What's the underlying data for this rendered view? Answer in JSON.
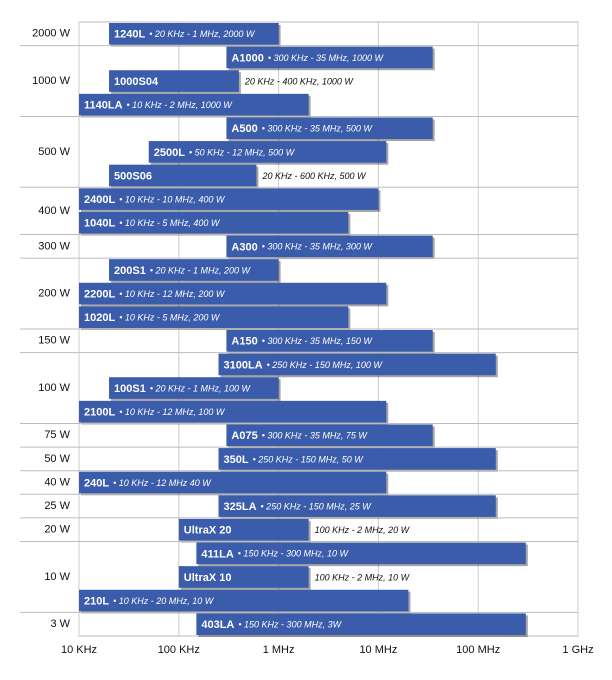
{
  "chart_data": {
    "type": "range-bar",
    "x_scale": "log",
    "xlim": [
      10000,
      1000000000
    ],
    "xticks": [
      {
        "value": 10000,
        "label": "10 KHz"
      },
      {
        "value": 100000,
        "label": "100 KHz"
      },
      {
        "value": 1000000,
        "label": "1 MHz"
      },
      {
        "value": 10000000,
        "label": "10 MHz"
      },
      {
        "value": 100000000,
        "label": "100 MHz"
      },
      {
        "value": 1000000000,
        "label": "1 GHz"
      }
    ],
    "grid": true,
    "color": "#3a5cab",
    "groups": [
      {
        "label": "2000 W",
        "bars": [
          {
            "name": "1240L",
            "desc": "• 20 KHz - 1 MHz, 2000 W",
            "start": 20000,
            "end": 1000000
          }
        ]
      },
      {
        "label": "1000 W",
        "bars": [
          {
            "name": "A1000",
            "desc": "• 300 KHz - 35 MHz, 1000 W",
            "start": 300000,
            "end": 35000000
          },
          {
            "name": "1000S04",
            "desc": "20 KHz - 400 KHz, 1000 W",
            "start": 20000,
            "end": 400000
          },
          {
            "name": "1140LA",
            "desc": "• 10 KHz - 2 MHz, 1000 W",
            "start": 10000,
            "end": 2000000
          }
        ]
      },
      {
        "label": "500 W",
        "bars": [
          {
            "name": "A500",
            "desc": "• 300 KHz - 35 MHz, 500 W",
            "start": 300000,
            "end": 35000000
          },
          {
            "name": "2500L",
            "desc": "• 50 KHz - 12 MHz, 500 W",
            "start": 50000,
            "end": 12000000
          },
          {
            "name": "500S06",
            "desc": "20 KHz - 600 KHz, 500 W",
            "start": 20000,
            "end": 600000
          }
        ]
      },
      {
        "label": "400 W",
        "bars": [
          {
            "name": "2400L",
            "desc": "• 10 KHz - 10 MHz, 400 W",
            "start": 10000,
            "end": 10000000
          },
          {
            "name": "1040L",
            "desc": "• 10 KHz - 5 MHz, 400 W",
            "start": 10000,
            "end": 5000000
          }
        ]
      },
      {
        "label": "300 W",
        "bars": [
          {
            "name": "A300",
            "desc": "• 300 KHz - 35 MHz, 300 W",
            "start": 300000,
            "end": 35000000
          }
        ]
      },
      {
        "label": "200 W",
        "bars": [
          {
            "name": "200S1",
            "desc": "• 20 KHz - 1 MHz, 200 W",
            "start": 20000,
            "end": 1000000
          },
          {
            "name": "2200L",
            "desc": "• 10 KHz - 12 MHz, 200 W",
            "start": 10000,
            "end": 12000000
          },
          {
            "name": "1020L",
            "desc": "• 10 KHz - 5 MHz, 200 W",
            "start": 10000,
            "end": 5000000
          }
        ]
      },
      {
        "label": "150 W",
        "bars": [
          {
            "name": "A150",
            "desc": "• 300 KHz - 35 MHz, 150 W",
            "start": 300000,
            "end": 35000000
          }
        ]
      },
      {
        "label": "100 W",
        "bars": [
          {
            "name": "3100LA",
            "desc": "• 250 KHz - 150 MHz, 100 W",
            "start": 250000,
            "end": 150000000
          },
          {
            "name": "100S1",
            "desc": "• 20 KHz - 1 MHz, 100 W",
            "start": 20000,
            "end": 1000000
          },
          {
            "name": "2100L",
            "desc": "• 10 KHz - 12 MHz, 100 W",
            "start": 10000,
            "end": 12000000
          }
        ]
      },
      {
        "label": "75 W",
        "bars": [
          {
            "name": "A075",
            "desc": "• 300 KHz - 35 MHz, 75 W",
            "start": 300000,
            "end": 35000000
          }
        ]
      },
      {
        "label": "50 W",
        "bars": [
          {
            "name": "350L",
            "desc": "• 250 KHz - 150 MHz, 50 W",
            "start": 250000,
            "end": 150000000
          }
        ]
      },
      {
        "label": "40 W",
        "bars": [
          {
            "name": "240L",
            "desc": "• 10 KHz - 12 MHz 40 W",
            "start": 10000,
            "end": 12000000
          }
        ]
      },
      {
        "label": "25 W",
        "bars": [
          {
            "name": "325LA",
            "desc": "• 250 KHz - 150 MHz, 25 W",
            "start": 250000,
            "end": 150000000
          }
        ]
      },
      {
        "label": "20 W",
        "bars": [
          {
            "name": "UltraX 20",
            "desc": "100 KHz - 2 MHz, 20 W",
            "start": 100000,
            "end": 2000000
          }
        ]
      },
      {
        "label": "10 W",
        "bars": [
          {
            "name": "411LA",
            "desc": "• 150 KHz - 300 MHz, 10 W",
            "start": 150000,
            "end": 300000000
          },
          {
            "name": "UltraX 10",
            "desc": "100 KHz - 2 MHz, 10 W",
            "start": 100000,
            "end": 2000000
          },
          {
            "name": "210L",
            "desc": "• 10 KHz - 20 MHz, 10 W",
            "start": 10000,
            "end": 20000000
          }
        ]
      },
      {
        "label": "3 W",
        "bars": [
          {
            "name": "403LA",
            "desc": "• 150 KHz - 300 MHz, 3W",
            "start": 150000,
            "end": 300000000
          }
        ]
      }
    ]
  }
}
